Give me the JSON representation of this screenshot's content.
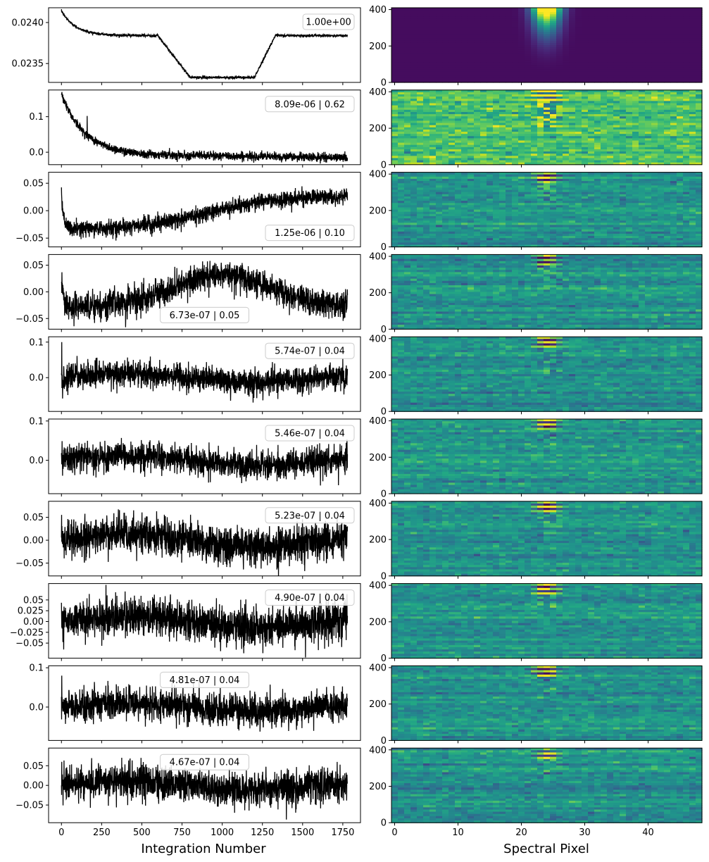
{
  "chart_data": {
    "type": "figure-grid",
    "xlabel_left": "Integration Number",
    "xlabel_right": "Spectral Pixel",
    "left_x_ticks": [
      0,
      250,
      500,
      750,
      1000,
      1250,
      1500,
      1750
    ],
    "left_xlim": [
      -80,
      1860
    ],
    "right_x_ticks": [
      0,
      10,
      20,
      30,
      40
    ],
    "right_xlim": [
      -0.5,
      48.5
    ],
    "right_y_ticks": [
      0,
      200,
      400
    ],
    "right_ylim": [
      0,
      410
    ],
    "n_points": 1780,
    "colormap": "viridis",
    "rows": [
      {
        "type": "line",
        "annotation": "1.00e+00",
        "ann_loc": "top-right",
        "ylim": [
          0.02327,
          0.02418
        ],
        "y_ticks": [
          0.0235,
          0.024
        ],
        "y_tick_labels": [
          "0.0235",
          "0.0240"
        ],
        "curve": {
          "kind": "transit",
          "start": 0.02414,
          "baseline": 0.02384,
          "ingress": [
            600,
            800
          ],
          "egress": [
            1200,
            1330
          ],
          "depth": 0.02333,
          "noise": 8e-06
        },
        "image": {
          "kind": "psf",
          "peak_col": 24,
          "width": 2.2
        }
      },
      {
        "type": "line",
        "annotation": "8.09e-06 | 0.62",
        "ann_loc": "top-right",
        "ylim": [
          -0.035,
          0.175
        ],
        "y_ticks": [
          0.0,
          0.1
        ],
        "y_tick_labels": [
          "0.0",
          "0.1"
        ],
        "curve": {
          "kind": "decay",
          "amp": 0.17,
          "tau": 140,
          "offset": -0.005,
          "trend": -0.01,
          "noise": 0.006
        },
        "image": {
          "kind": "resid",
          "base": 0.72,
          "contrast": 0.08,
          "band": 0.4
        }
      },
      {
        "type": "line",
        "annotation": "1.25e-06 | 0.10",
        "ann_loc": "bottom-right",
        "ylim": [
          -0.066,
          0.07
        ],
        "y_ticks": [
          -0.05,
          0.0,
          0.05
        ],
        "y_tick_labels": [
          "−0.05",
          "0.00",
          "0.05"
        ],
        "curve": {
          "kind": "sigmoid",
          "spike": 0.07,
          "low": -0.035,
          "high": 0.027,
          "center": 900,
          "scale": 220,
          "noise": 0.007
        },
        "image": {
          "kind": "resid",
          "base": 0.5,
          "contrast": 0.06,
          "band": 0.2
        }
      },
      {
        "type": "line",
        "annotation": "6.73e-07 | 0.05",
        "ann_loc": "bottom-center",
        "ylim": [
          -0.07,
          0.07
        ],
        "y_ticks": [
          -0.05,
          0.0,
          0.05
        ],
        "y_tick_labels": [
          "−0.05",
          "0.00",
          "0.05"
        ],
        "curve": {
          "kind": "hump",
          "spike": 0.06,
          "amp": 0.06,
          "center": 1000,
          "width": 420,
          "offset": -0.028,
          "noise": 0.013
        },
        "image": {
          "kind": "resid",
          "base": 0.5,
          "contrast": 0.06,
          "band": 0.2
        }
      },
      {
        "type": "line",
        "annotation": "5.74e-07 | 0.04",
        "ann_loc": "top-right",
        "ylim": [
          -0.095,
          0.115
        ],
        "y_ticks": [
          0.0,
          0.1
        ],
        "y_tick_labels": [
          "0.0",
          "0.1"
        ],
        "curve": {
          "kind": "noise",
          "spike": 0.1,
          "offset": 0.0,
          "noise": 0.018
        },
        "image": {
          "kind": "resid",
          "base": 0.5,
          "contrast": 0.06,
          "band": 0.15
        }
      },
      {
        "type": "line",
        "annotation": "5.46e-07 | 0.04",
        "ann_loc": "top-right",
        "ylim": [
          -0.085,
          0.105
        ],
        "y_ticks": [
          0.0,
          0.1
        ],
        "y_tick_labels": [
          "0.0",
          "0.1"
        ],
        "curve": {
          "kind": "noise",
          "spike": 0.0,
          "offset": 0.0,
          "noise": 0.017
        },
        "image": {
          "kind": "resid",
          "base": 0.5,
          "contrast": 0.06,
          "band": 0.15
        }
      },
      {
        "type": "line",
        "annotation": "5.23e-07 | 0.04",
        "ann_loc": "top-right",
        "ylim": [
          -0.078,
          0.085
        ],
        "y_ticks": [
          -0.05,
          0.0,
          0.05
        ],
        "y_tick_labels": [
          "−0.05",
          "0.00",
          "0.05"
        ],
        "curve": {
          "kind": "noise",
          "spike": 0.0,
          "offset": 0.0,
          "noise": 0.02
        },
        "image": {
          "kind": "resid",
          "base": 0.5,
          "contrast": 0.06,
          "band": 0.15
        }
      },
      {
        "type": "line",
        "annotation": "4.90e-07 | 0.04",
        "ann_loc": "top-right",
        "ylim": [
          -0.085,
          0.088
        ],
        "y_ticks": [
          -0.05,
          -0.025,
          0.0,
          0.025,
          0.05
        ],
        "y_tick_labels": [
          "−0.05",
          "−0.025",
          "0.00",
          "0.025",
          "0.05"
        ],
        "curve": {
          "kind": "noise",
          "spike": 0.0,
          "offset": 0.0,
          "noise": 0.022
        },
        "image": {
          "kind": "resid",
          "base": 0.5,
          "contrast": 0.06,
          "band": 0.15
        }
      },
      {
        "type": "line",
        "annotation": "4.81e-07 | 0.04",
        "ann_loc": "top-center",
        "ylim": [
          -0.085,
          0.105
        ],
        "y_ticks": [
          0.0,
          0.1
        ],
        "y_tick_labels": [
          "0.0",
          "0.1"
        ],
        "curve": {
          "kind": "noise",
          "spike": 0.08,
          "offset": 0.0,
          "noise": 0.02
        },
        "image": {
          "kind": "resid",
          "base": 0.5,
          "contrast": 0.06,
          "band": 0.15
        }
      },
      {
        "type": "line",
        "annotation": "4.67e-07 | 0.04",
        "ann_loc": "top-center",
        "ylim": [
          -0.095,
          0.095
        ],
        "y_ticks": [
          -0.05,
          0.0,
          0.05
        ],
        "y_tick_labels": [
          "−0.05",
          "0.00",
          "0.05"
        ],
        "curve": {
          "kind": "noise",
          "spike": 0.06,
          "offset": 0.0,
          "noise": 0.022
        },
        "image": {
          "kind": "resid",
          "base": 0.5,
          "contrast": 0.06,
          "band": 0.15
        }
      }
    ]
  }
}
